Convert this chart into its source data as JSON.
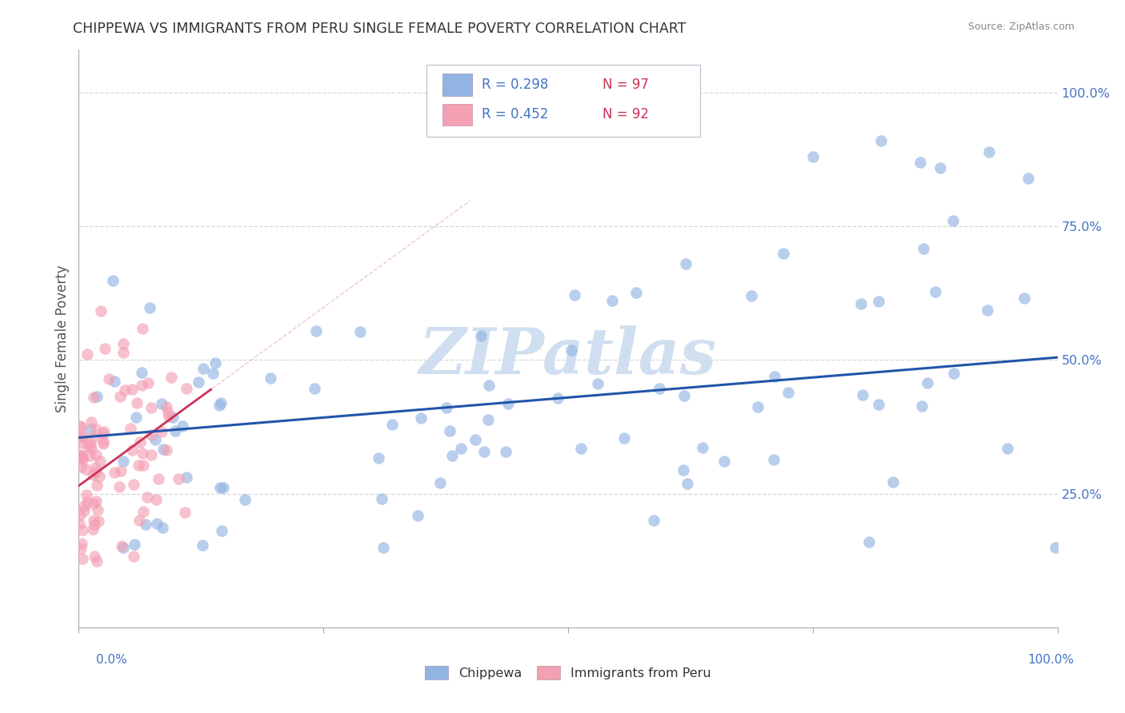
{
  "title": "CHIPPEWA VS IMMIGRANTS FROM PERU SINGLE FEMALE POVERTY CORRELATION CHART",
  "source": "Source: ZipAtlas.com",
  "ylabel": "Single Female Poverty",
  "ytick_vals": [
    0.25,
    0.5,
    0.75,
    1.0
  ],
  "ytick_labels": [
    "25.0%",
    "50.0%",
    "75.0%",
    "100.0%"
  ],
  "xtick_left": "0.0%",
  "xtick_right": "100.0%",
  "legend_label1": "Chippewa",
  "legend_label2": "Immigrants from Peru",
  "color_chippewa": "#92b4e3",
  "color_peru": "#f4a0b4",
  "color_chippewa_line": "#2255aa",
  "color_peru_line": "#cc3355",
  "color_peru_dash": "#e8b0b8",
  "watermark_color": "#d0dff0",
  "background": "#ffffff",
  "grid_color": "#cccccc",
  "axis_color": "#aaaaaa",
  "tick_label_color": "#4472c4",
  "title_color": "#333333",
  "ylabel_color": "#555555",
  "legend_text_color": "#333333",
  "legend_r_color": "#4472c4",
  "legend_n_color": "#cc3355",
  "r_chip": 0.298,
  "n_chip": 97,
  "r_peru": 0.452,
  "n_peru": 92
}
